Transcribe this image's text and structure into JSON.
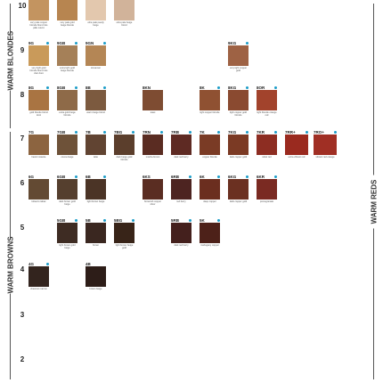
{
  "groups": {
    "warm_blondes": "WARM BLONDES",
    "warm_browns": "WARM BROWNS",
    "warm_reds": "WARM REDS"
  },
  "levels": [
    "10",
    "9",
    "8",
    "7",
    "6",
    "5",
    "4",
    "3",
    "2"
  ],
  "rows": {
    "r10": [
      {
        "code": "",
        "color": "#c39460",
        "caption": "very pale copper blonde blond très pâle cuivré"
      },
      {
        "code": "",
        "color": "#b78550",
        "caption": "very pale gold beige blonde"
      },
      {
        "code": "",
        "color": "#e3c8ae",
        "caption": "ultra pale pearly beige"
      },
      {
        "code": "",
        "color": "#d1b39a",
        "caption": "ultra pale beige blond"
      }
    ],
    "r9": [
      {
        "code": "9G",
        "color": "#c99a5a",
        "caption": "very light gold blonde blond très clair doré"
      },
      {
        "code": "9GB",
        "color": "#a58058",
        "caption": "extra light gold beige blonde"
      },
      {
        "code": "9GN",
        "color": "#b48655",
        "caption": "cinnamon"
      },
      {
        "code": "9KG",
        "color": "#9e6244",
        "caption": "very light copper gold"
      }
    ],
    "r8": [
      {
        "code": "8G",
        "color": "#a97442",
        "caption": "gold blonde blond doré"
      },
      {
        "code": "8GB",
        "color": "#8e6a48",
        "caption": "extra gold beige blonde"
      },
      {
        "code": "8B",
        "color": "#7c5a3f",
        "caption": "warm beige blond"
      },
      {
        "code": "8KN",
        "color": "#7e4c32",
        "caption": "toast"
      },
      {
        "code": "8K",
        "color": "#8f5132",
        "caption": "light copper blonde"
      },
      {
        "code": "8KG",
        "color": "#8a4a30",
        "caption": "light copper gold blonde"
      },
      {
        "code": "8OR",
        "color": "#a2432c",
        "caption": "light blonde orange red"
      }
    ],
    "r7": [
      {
        "code": "7G",
        "color": "#8c6440",
        "caption": "hazel noisette"
      },
      {
        "code": "7GB",
        "color": "#6e5239",
        "caption": "cocoa beige"
      },
      {
        "code": "7B",
        "color": "#614432",
        "caption": "latte"
      },
      {
        "code": "7BG",
        "color": "#5b3e2c",
        "caption": "dark beige gold blonde"
      },
      {
        "code": "7RN",
        "color": "#5a2c22",
        "caption": "mocha brown"
      },
      {
        "code": "7RB",
        "color": "#5e2a23",
        "caption": "dark red berry"
      },
      {
        "code": "7K",
        "color": "#7a3b25",
        "caption": "copper blonde"
      },
      {
        "code": "7KG",
        "color": "#7b3a24",
        "caption": "dark copper gold"
      },
      {
        "code": "7KR",
        "color": "#8d2d22",
        "caption": "rebel red"
      },
      {
        "code": "7RR+",
        "color": "#9a2a1f",
        "caption": "extra vibrant red"
      },
      {
        "code": "7RO+",
        "color": "#a02f24",
        "caption": "vibrant red orange"
      }
    ],
    "r6": [
      {
        "code": "6G",
        "color": "#634a33",
        "caption": "tobacco tabac"
      },
      {
        "code": "6GB",
        "color": "#553f2e",
        "caption": "dark brown gold beige"
      },
      {
        "code": "6B",
        "color": "#4b3426",
        "caption": "light brown beige"
      },
      {
        "code": "6KS",
        "color": "#5a2d22",
        "caption": "brownish copper silver"
      },
      {
        "code": "6RB",
        "color": "#4d2421",
        "caption": "red berry"
      },
      {
        "code": "6K",
        "color": "#6b2e1f",
        "caption": "deep copper"
      },
      {
        "code": "6KG",
        "color": "#6b3021",
        "caption": "dark copper gold"
      },
      {
        "code": "6KR",
        "color": "#7a2a22",
        "caption": "pomegranate"
      }
    ],
    "r5": [
      {
        "code": "5GB",
        "color": "#3e2c23",
        "caption": "light brown gold beige"
      },
      {
        "code": "5B",
        "color": "#3a2720",
        "caption": "brown"
      },
      {
        "code": "5BG",
        "color": "#382418",
        "caption": "light brown beige gold"
      },
      {
        "code": "5RB",
        "color": "#44201d",
        "caption": "dark red berry"
      },
      {
        "code": "5K",
        "color": "#4d2119",
        "caption": "mahogany copper"
      }
    ],
    "r4": [
      {
        "code": "4G",
        "color": "#33241e",
        "caption": "chestnut marron"
      },
      {
        "code": "4B",
        "color": "#2d1d18",
        "caption": "brown beige"
      }
    ]
  }
}
